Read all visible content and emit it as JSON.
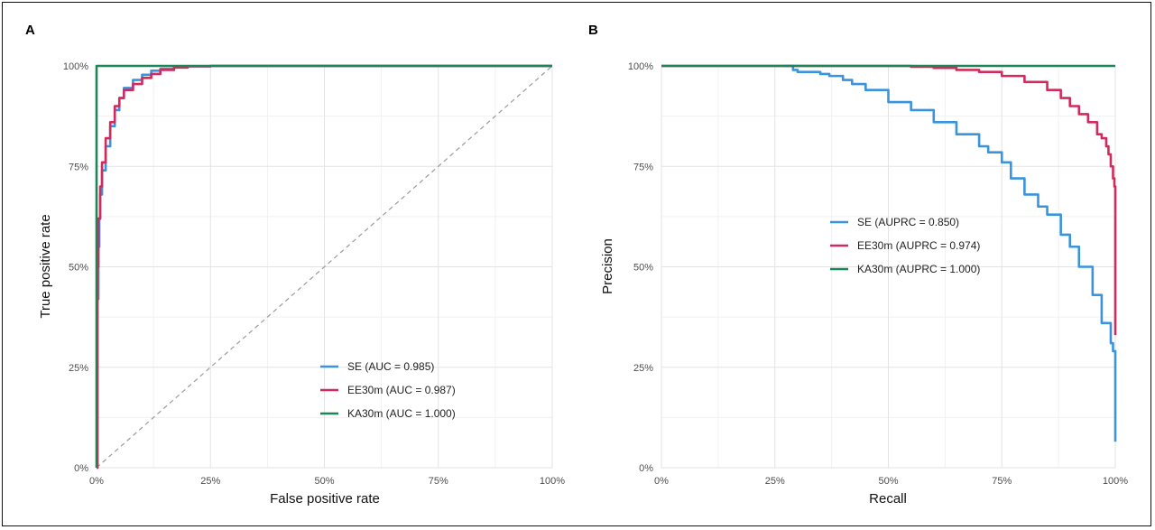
{
  "figure": {
    "panels": [
      {
        "tag": "A",
        "xlabel": "False positive rate",
        "ylabel": "True positive rate"
      },
      {
        "tag": "B",
        "xlabel": "Recall",
        "ylabel": "Precision"
      }
    ]
  },
  "colors": {
    "SE": "#3a93dd",
    "EE30m": "#d12a5c",
    "KA30m": "#1d8557",
    "diagonal": "#9a9a9a"
  },
  "chart_data": [
    {
      "type": "line",
      "title": "",
      "tag": "A",
      "xlabel": "False positive rate",
      "ylabel": "True positive rate",
      "xlim": [
        0,
        1
      ],
      "ylim": [
        0,
        1
      ],
      "x_tick_values": [
        0,
        0.25,
        0.5,
        0.75,
        1
      ],
      "y_tick_values": [
        0,
        0.25,
        0.5,
        0.75,
        1
      ],
      "x_ticks": [
        "0%",
        "25%",
        "50%",
        "75%",
        "100%"
      ],
      "y_ticks": [
        "0%",
        "25%",
        "50%",
        "75%",
        "100%"
      ],
      "grid": true,
      "legend_position": "bottom-right",
      "reference_line": {
        "style": "dashed",
        "from": [
          0,
          0
        ],
        "to": [
          1,
          1
        ]
      },
      "series": [
        {
          "name": "SE",
          "legend": "SE  (AUC = 0.985)",
          "color": "#3a93dd",
          "x": [
            0,
            0.002,
            0.004,
            0.006,
            0.008,
            0.012,
            0.02,
            0.03,
            0.04,
            0.05,
            0.06,
            0.08,
            0.1,
            0.12,
            0.14,
            0.17,
            0.2,
            0.25,
            1.0
          ],
          "y": [
            0,
            0.42,
            0.55,
            0.62,
            0.68,
            0.74,
            0.8,
            0.85,
            0.89,
            0.92,
            0.945,
            0.965,
            0.978,
            0.988,
            0.993,
            0.997,
            0.999,
            1.0,
            1.0
          ]
        },
        {
          "name": "EE30m",
          "legend": "EE30m  (AUC = 0.987)",
          "color": "#d12a5c",
          "x": [
            0,
            0.002,
            0.004,
            0.008,
            0.012,
            0.02,
            0.03,
            0.04,
            0.05,
            0.06,
            0.08,
            0.1,
            0.12,
            0.14,
            0.17,
            0.2,
            0.25,
            1.0
          ],
          "y": [
            0,
            0.5,
            0.62,
            0.7,
            0.76,
            0.82,
            0.86,
            0.9,
            0.92,
            0.94,
            0.955,
            0.97,
            0.98,
            0.99,
            0.996,
            0.999,
            1.0,
            1.0
          ]
        },
        {
          "name": "KA30m",
          "legend": "KA30m  (AUC = 1.000)",
          "color": "#1d8557",
          "x": [
            0,
            0,
            1.0
          ],
          "y": [
            0,
            1.0,
            1.0
          ]
        }
      ]
    },
    {
      "type": "line",
      "title": "",
      "tag": "B",
      "xlabel": "Recall",
      "ylabel": "Precision",
      "xlim": [
        0,
        1
      ],
      "ylim": [
        0,
        1
      ],
      "x_tick_values": [
        0,
        0.25,
        0.5,
        0.75,
        1
      ],
      "y_tick_values": [
        0,
        0.25,
        0.5,
        0.75,
        1
      ],
      "x_ticks": [
        "0%",
        "25%",
        "50%",
        "75%",
        "100%"
      ],
      "y_ticks": [
        "0%",
        "25%",
        "50%",
        "75%",
        "100%"
      ],
      "grid": true,
      "legend_position": "center-right",
      "series": [
        {
          "name": "SE",
          "legend": "SE  (AUPRC = 0.850)",
          "color": "#3a93dd",
          "x": [
            0.27,
            0.29,
            0.3,
            0.35,
            0.37,
            0.4,
            0.42,
            0.45,
            0.5,
            0.55,
            0.6,
            0.65,
            0.7,
            0.72,
            0.75,
            0.77,
            0.8,
            0.83,
            0.85,
            0.88,
            0.9,
            0.92,
            0.95,
            0.97,
            0.99,
            0.995,
            1.0,
            1.0
          ],
          "y": [
            1.0,
            0.99,
            0.985,
            0.98,
            0.975,
            0.965,
            0.955,
            0.94,
            0.91,
            0.89,
            0.86,
            0.83,
            0.8,
            0.785,
            0.76,
            0.72,
            0.68,
            0.65,
            0.63,
            0.58,
            0.55,
            0.5,
            0.43,
            0.36,
            0.31,
            0.29,
            0.28,
            0.065
          ]
        },
        {
          "name": "EE30m",
          "legend": "EE30m  (AUPRC = 0.974)",
          "color": "#d12a5c",
          "x": [
            0,
            0.5,
            0.55,
            0.6,
            0.65,
            0.7,
            0.75,
            0.8,
            0.85,
            0.88,
            0.9,
            0.92,
            0.94,
            0.96,
            0.97,
            0.98,
            0.985,
            0.99,
            0.995,
            0.998,
            1.0,
            1.0
          ],
          "y": [
            1.0,
            1.0,
            0.998,
            0.995,
            0.99,
            0.985,
            0.975,
            0.96,
            0.94,
            0.92,
            0.9,
            0.88,
            0.86,
            0.83,
            0.82,
            0.8,
            0.78,
            0.75,
            0.72,
            0.7,
            0.65,
            0.33
          ]
        },
        {
          "name": "KA30m",
          "legend": "KA30m  (AUPRC = 1.000)",
          "color": "#1d8557",
          "x": [
            0,
            1.0
          ],
          "y": [
            1.0,
            1.0
          ]
        }
      ]
    }
  ]
}
